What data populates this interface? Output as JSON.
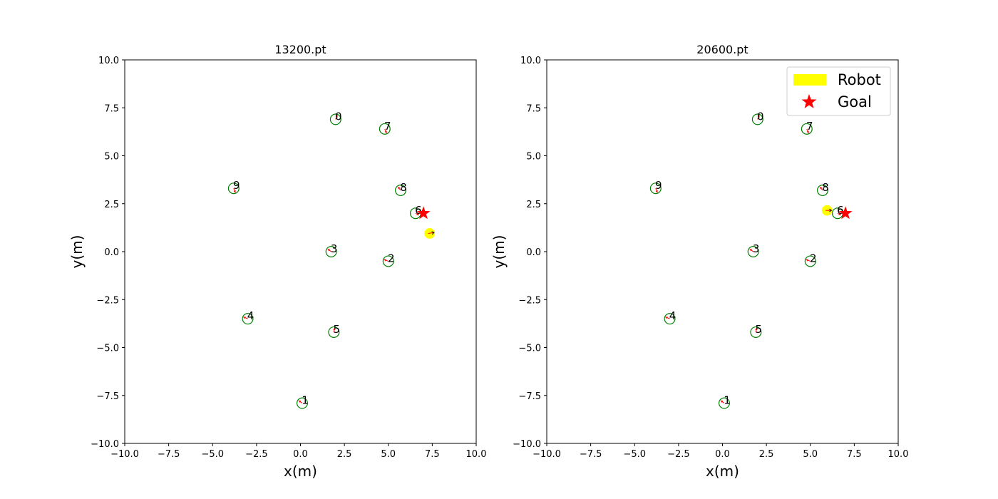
{
  "chart_data": [
    {
      "type": "scatter",
      "title": "13200.pt",
      "xlabel": "x(m)",
      "ylabel": "y(m)",
      "xlim": [
        -10,
        10
      ],
      "ylim": [
        -10,
        10
      ],
      "xticks": [
        "−10.0",
        "−7.5",
        "−5.0",
        "−2.5",
        "0.0",
        "2.5",
        "5.0",
        "7.5",
        "10.0"
      ],
      "yticks": [
        "−10.0",
        "−7.5",
        "−5.0",
        "−2.5",
        "0.0",
        "2.5",
        "5.0",
        "7.5",
        "10.0"
      ],
      "grid": false,
      "humans": [
        {
          "id": "0",
          "x": 2.0,
          "y": 6.9,
          "dx": 0.1,
          "dy": 0.25
        },
        {
          "id": "1",
          "x": 0.1,
          "y": -7.9,
          "dx": -0.2,
          "dy": 0.15
        },
        {
          "id": "2",
          "x": 5.0,
          "y": -0.5,
          "dx": -0.25,
          "dy": 0.1
        },
        {
          "id": "3",
          "x": 1.75,
          "y": 0.0,
          "dx": -0.2,
          "dy": 0.15
        },
        {
          "id": "4",
          "x": -3.0,
          "y": -3.5,
          "dx": -0.25,
          "dy": 0.1
        },
        {
          "id": "5",
          "x": 1.9,
          "y": -4.2,
          "dx": 0.05,
          "dy": 0.25
        },
        {
          "id": "6",
          "x": 6.55,
          "y": 2.0,
          "dx": 0.2,
          "dy": -0.1
        },
        {
          "id": "7",
          "x": 4.8,
          "y": 6.4,
          "dx": 0.1,
          "dy": -0.25
        },
        {
          "id": "8",
          "x": 5.7,
          "y": 3.2,
          "dx": -0.15,
          "dy": 0.2
        },
        {
          "id": "9",
          "x": -3.8,
          "y": 3.3,
          "dx": 0.1,
          "dy": -0.25
        }
      ],
      "robot": {
        "x": 7.35,
        "y": 0.95,
        "dx": 0.25,
        "dy": 0.05
      },
      "goal": {
        "x": 7.0,
        "y": 2.0
      },
      "legend": null
    },
    {
      "type": "scatter",
      "title": "20600.pt",
      "xlabel": "x(m)",
      "ylabel": "y(m)",
      "xlim": [
        -10,
        10
      ],
      "ylim": [
        -10,
        10
      ],
      "xticks": [
        "−10.0",
        "−7.5",
        "−5.0",
        "−2.5",
        "0.0",
        "2.5",
        "5.0",
        "7.5",
        "10.0"
      ],
      "yticks": [
        "−10.0",
        "−7.5",
        "−5.0",
        "−2.5",
        "0.0",
        "2.5",
        "5.0",
        "7.5",
        "10.0"
      ],
      "grid": false,
      "humans": [
        {
          "id": "0",
          "x": 2.0,
          "y": 6.9,
          "dx": 0.1,
          "dy": 0.25
        },
        {
          "id": "1",
          "x": 0.1,
          "y": -7.9,
          "dx": -0.2,
          "dy": 0.15
        },
        {
          "id": "2",
          "x": 5.0,
          "y": -0.5,
          "dx": -0.25,
          "dy": 0.1
        },
        {
          "id": "3",
          "x": 1.75,
          "y": 0.0,
          "dx": -0.2,
          "dy": 0.15
        },
        {
          "id": "4",
          "x": -3.0,
          "y": -3.5,
          "dx": -0.25,
          "dy": 0.1
        },
        {
          "id": "5",
          "x": 1.9,
          "y": -4.2,
          "dx": 0.05,
          "dy": 0.25
        },
        {
          "id": "6",
          "x": 6.55,
          "y": 2.0,
          "dx": 0.2,
          "dy": -0.1
        },
        {
          "id": "7",
          "x": 4.8,
          "y": 6.4,
          "dx": 0.1,
          "dy": -0.25
        },
        {
          "id": "8",
          "x": 5.7,
          "y": 3.2,
          "dx": -0.15,
          "dy": 0.2
        },
        {
          "id": "9",
          "x": -3.8,
          "y": 3.3,
          "dx": 0.1,
          "dy": -0.25
        }
      ],
      "robot": {
        "x": 5.95,
        "y": 2.15,
        "dx": 0.25,
        "dy": 0.0
      },
      "goal": {
        "x": 7.0,
        "y": 2.0
      },
      "legend": {
        "position": "top-right",
        "entries": [
          {
            "label": "Robot",
            "marker": "patch",
            "color": "#ffff00"
          },
          {
            "label": "Goal",
            "marker": "star",
            "color": "#ff0000"
          }
        ]
      }
    }
  ],
  "colors": {
    "human_circle": "#008000",
    "heading": "#ff0000",
    "robot": "#ffff00",
    "goal": "#ff0000"
  }
}
